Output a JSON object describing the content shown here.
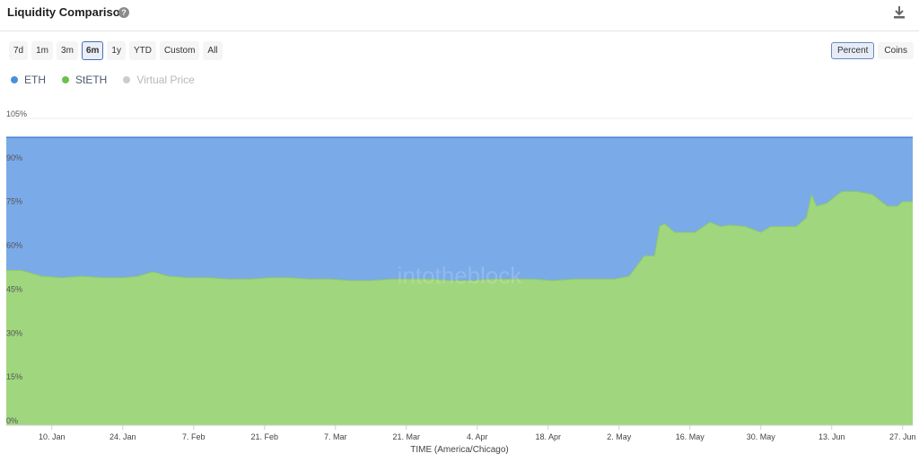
{
  "header": {
    "title": "Liquidity Comparison",
    "help_icon": "question-circle-icon",
    "download_icon": "download-icon"
  },
  "time_ranges": [
    "7d",
    "1m",
    "3m",
    "6m",
    "1y",
    "YTD",
    "Custom",
    "All"
  ],
  "active_range": "6m",
  "modes": [
    "Percent",
    "Coins"
  ],
  "active_mode": "Percent",
  "watermark": "intotheblock",
  "colors": {
    "eth": "#7aaae8",
    "steth": "#9fd67e",
    "eth_line": "#4a7fd6",
    "virtual": "#cccccc"
  },
  "chart_data": {
    "type": "area",
    "stacked": true,
    "xlabel": "TIME (America/Chicago)",
    "x_tick_labels": [
      "10. Jan",
      "24. Jan",
      "7. Feb",
      "21. Feb",
      "7. Mar",
      "21. Mar",
      "4. Apr",
      "18. Apr",
      "2. May",
      "16. May",
      "30. May",
      "13. Jun",
      "27. Jun"
    ],
    "y_tick_labels": [
      "0%",
      "15%",
      "30%",
      "45%",
      "60%",
      "75%",
      "90%",
      "105%"
    ],
    "ylim": [
      0,
      105
    ],
    "grid": true,
    "legend_position": "top-left",
    "legend": [
      {
        "name": "ETH",
        "color": "#4a90d9",
        "enabled": true
      },
      {
        "name": "StETH",
        "color": "#6fbf4a",
        "enabled": true
      },
      {
        "name": "Virtual Price",
        "color": "#cccccc",
        "enabled": false
      }
    ],
    "x_range": [
      "2022-01-01",
      "2022-06-29"
    ],
    "series": [
      {
        "name": "StETH",
        "x": [
          "2022-01-01",
          "2022-01-04",
          "2022-01-08",
          "2022-01-12",
          "2022-01-16",
          "2022-01-20",
          "2022-01-24",
          "2022-01-27",
          "2022-01-30",
          "2022-02-02",
          "2022-02-06",
          "2022-02-10",
          "2022-02-14",
          "2022-02-18",
          "2022-02-22",
          "2022-02-26",
          "2022-03-02",
          "2022-03-06",
          "2022-03-10",
          "2022-03-14",
          "2022-03-18",
          "2022-03-22",
          "2022-03-26",
          "2022-03-30",
          "2022-04-03",
          "2022-04-07",
          "2022-04-11",
          "2022-04-15",
          "2022-04-19",
          "2022-04-23",
          "2022-04-27",
          "2022-05-01",
          "2022-05-04",
          "2022-05-07",
          "2022-05-09",
          "2022-05-10",
          "2022-05-11",
          "2022-05-13",
          "2022-05-15",
          "2022-05-17",
          "2022-05-20",
          "2022-05-22",
          "2022-05-24",
          "2022-05-27",
          "2022-05-30",
          "2022-06-01",
          "2022-06-03",
          "2022-06-06",
          "2022-06-08",
          "2022-06-09",
          "2022-06-10",
          "2022-06-12",
          "2022-06-15",
          "2022-06-18",
          "2022-06-21",
          "2022-06-24",
          "2022-06-26",
          "2022-06-27",
          "2022-06-29"
        ],
        "values": [
          53,
          53,
          51,
          50.5,
          51,
          50.5,
          50.5,
          51,
          52.5,
          51,
          50.5,
          50.5,
          50,
          50,
          50.5,
          50.5,
          50,
          50,
          49.5,
          49.5,
          50,
          50,
          50,
          49.5,
          49.5,
          50,
          50,
          50,
          49.5,
          50,
          50,
          50,
          51,
          58,
          58,
          68,
          69,
          66,
          66,
          66,
          69.5,
          68,
          68.5,
          68,
          66,
          68,
          68,
          68,
          71,
          79,
          75,
          76,
          80,
          80,
          79,
          75,
          75,
          76.5,
          76.5
        ]
      },
      {
        "name": "ETH",
        "x": [
          "2022-01-01",
          "2022-06-29"
        ],
        "values": [
          47,
          23.5
        ]
      }
    ]
  }
}
